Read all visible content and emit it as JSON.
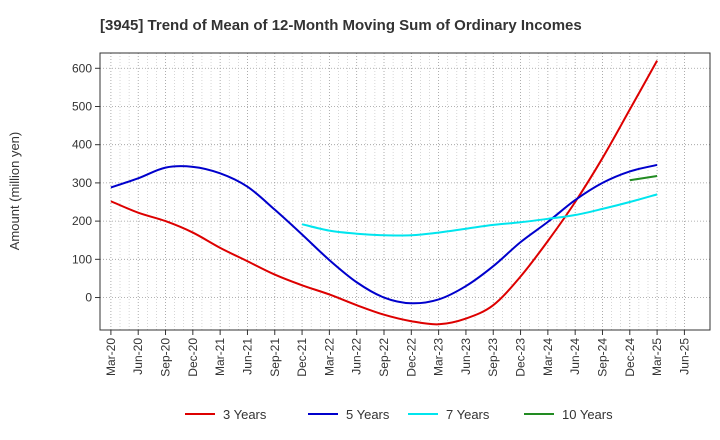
{
  "chart_data": {
    "type": "line",
    "title": "[3945]  Trend of Mean of 12-Month Moving Sum of Ordinary Incomes",
    "xlabel": "",
    "ylabel": "Amount (million yen)",
    "ylim": [
      -85,
      640
    ],
    "yticks": [
      0,
      100,
      200,
      300,
      400,
      500,
      600
    ],
    "categories": [
      "Mar-20",
      "Jun-20",
      "Sep-20",
      "Dec-20",
      "Mar-21",
      "Jun-21",
      "Sep-21",
      "Dec-21",
      "Mar-22",
      "Jun-22",
      "Sep-22",
      "Dec-22",
      "Mar-23",
      "Jun-23",
      "Sep-23",
      "Dec-23",
      "Mar-24",
      "Jun-24",
      "Sep-24",
      "Dec-24",
      "Mar-25",
      "Jun-25"
    ],
    "grid": true,
    "legend_position": "bottom",
    "series": [
      {
        "name": "3 Years",
        "color": "#dd0000",
        "values": [
          252,
          222,
          200,
          170,
          130,
          95,
          60,
          32,
          8,
          -20,
          -45,
          -62,
          -70,
          -55,
          -20,
          55,
          148,
          250,
          365,
          492,
          620,
          null
        ]
      },
      {
        "name": "5 Years",
        "color": "#0000cc",
        "values": [
          288,
          312,
          340,
          342,
          325,
          290,
          230,
          165,
          98,
          40,
          0,
          -15,
          -5,
          30,
          82,
          145,
          198,
          255,
          300,
          330,
          347,
          null
        ]
      },
      {
        "name": "7 Years",
        "color": "#00e5ee",
        "values": [
          null,
          null,
          null,
          null,
          null,
          null,
          null,
          192,
          175,
          167,
          163,
          163,
          170,
          180,
          190,
          197,
          206,
          216,
          232,
          250,
          270,
          null
        ]
      },
      {
        "name": "10 Years",
        "color": "#228b22",
        "values": [
          null,
          null,
          null,
          null,
          null,
          null,
          null,
          null,
          null,
          null,
          null,
          null,
          null,
          null,
          null,
          null,
          null,
          null,
          null,
          307,
          318,
          null
        ]
      }
    ]
  }
}
